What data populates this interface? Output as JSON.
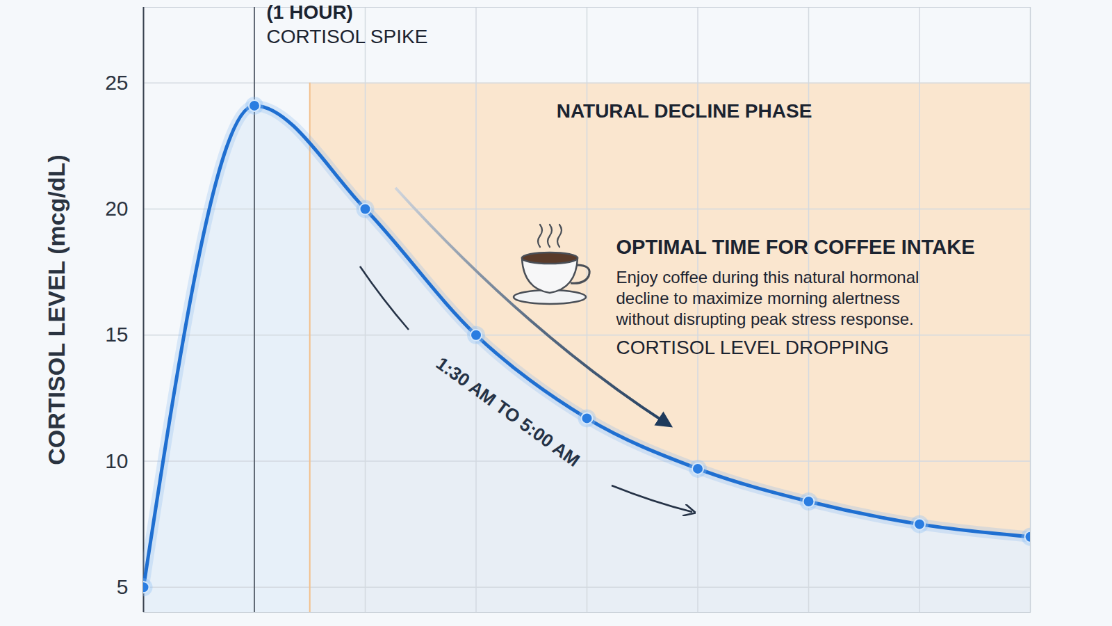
{
  "chart_data": {
    "type": "line",
    "y_label": "CORTISOL LEVEL (mcg/dL)",
    "x": [
      0,
      1,
      2,
      3,
      4,
      5,
      6,
      7,
      8
    ],
    "values": [
      5,
      24.1,
      20,
      15,
      11.7,
      9.7,
      8.4,
      7.5,
      7
    ],
    "color": "#1f6fd1",
    "marker": "circle",
    "line_style": "solid",
    "xlim": [
      0,
      8
    ],
    "xticks": [
      0,
      1,
      2,
      3,
      4,
      5,
      6,
      7,
      8
    ],
    "ylim": [
      4,
      28
    ],
    "yticks": [
      5,
      10,
      15,
      20,
      25
    ],
    "grid": true,
    "tick_labels": "y",
    "shaded_region": {
      "label": "NATURAL DECLINE PHASE",
      "x": [
        1.5,
        8
      ],
      "y": [
        4,
        25
      ]
    },
    "annotations": {
      "spike_time": "(1 HOUR)",
      "spike": "CORTISOL SPIKE",
      "tip_title": "OPTIMAL TIME FOR COFFEE INTAKE",
      "tip_text": "Enjoy coffee during this natural hormonal decline to maximize morning alertness without disrupting peak stress response.",
      "trend": "CORTISOL LEVEL DROPPING",
      "window": "1:30 AM TO 5:00 AM"
    }
  }
}
